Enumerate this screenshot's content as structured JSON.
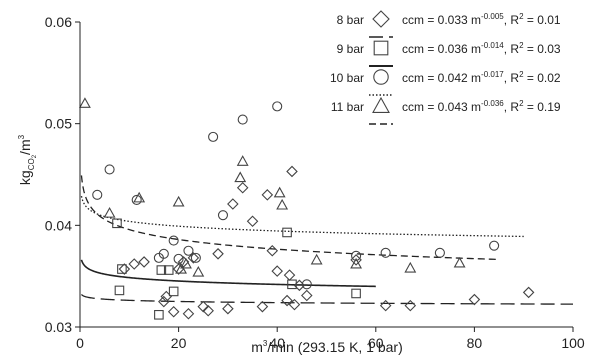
{
  "chart_data": {
    "type": "scatter",
    "title": "",
    "xlabel_main": "m",
    "xlabel_sup": "3",
    "xlabel_rest": "/min (293.15 K, 1 bar)",
    "ylabel_main": "kg",
    "ylabel_sub": "CO",
    "ylabel_subsub": "2",
    "ylabel_rest": "/m",
    "ylabel_sup": "3",
    "xlim": [
      0,
      100
    ],
    "ylim": [
      0.03,
      0.06
    ],
    "xticks": [
      {
        "v": 0,
        "label": "0"
      },
      {
        "v": 20,
        "label": "20"
      },
      {
        "v": 40,
        "label": "40"
      },
      {
        "v": 60,
        "label": "60"
      },
      {
        "v": 80,
        "label": "80"
      },
      {
        "v": 100,
        "label": "100"
      }
    ],
    "yticks": [
      {
        "v": 0.03,
        "label": "0.03"
      },
      {
        "v": 0.04,
        "label": "0.04"
      },
      {
        "v": 0.05,
        "label": "0.05"
      },
      {
        "v": 0.06,
        "label": "0.06"
      }
    ],
    "grid": false,
    "legend_position": "top-right",
    "series": [
      {
        "name": "8 bar",
        "marker": "diamond",
        "eq_main": "ccm = 0.033 m",
        "eq_sup": "-0.005",
        "eq_tail": ", R",
        "eq_sup2": "2",
        "eq_end": " = 0.01",
        "fit": {
          "a": 0.033,
          "b": -0.005,
          "xmax": 100,
          "dash": "long-short"
        },
        "points": [
          [
            9,
            0.0357
          ],
          [
            11,
            0.0362
          ],
          [
            13,
            0.0364
          ],
          [
            17,
            0.0325
          ],
          [
            17.5,
            0.033
          ],
          [
            19,
            0.0315
          ],
          [
            20,
            0.0357
          ],
          [
            21,
            0.0364
          ],
          [
            22,
            0.0313
          ],
          [
            23,
            0.0368
          ],
          [
            25,
            0.032
          ],
          [
            26,
            0.0316
          ],
          [
            28,
            0.0372
          ],
          [
            30,
            0.0318
          ],
          [
            31,
            0.0421
          ],
          [
            33,
            0.0437
          ],
          [
            35,
            0.0404
          ],
          [
            37,
            0.032
          ],
          [
            38,
            0.043
          ],
          [
            39,
            0.0375
          ],
          [
            40,
            0.0355
          ],
          [
            42,
            0.0326
          ],
          [
            42.5,
            0.0351
          ],
          [
            43,
            0.0453
          ],
          [
            43.5,
            0.0322
          ],
          [
            44.5,
            0.0341
          ],
          [
            46,
            0.0331
          ],
          [
            56,
            0.0366
          ],
          [
            62,
            0.0321
          ],
          [
            67,
            0.0321
          ],
          [
            80,
            0.0327
          ],
          [
            91,
            0.0334
          ]
        ]
      },
      {
        "name": "9 bar",
        "marker": "square",
        "eq_main": "ccm = 0.036 m",
        "eq_sup": "-0.014",
        "eq_tail": ", R",
        "eq_sup2": "2",
        "eq_end": " = 0.03",
        "fit": {
          "a": 0.036,
          "b": -0.014,
          "xmax": 60,
          "dash": "solid"
        },
        "points": [
          [
            7.5,
            0.0402
          ],
          [
            8,
            0.0336
          ],
          [
            8.5,
            0.0357
          ],
          [
            16,
            0.0312
          ],
          [
            16.5,
            0.0356
          ],
          [
            18,
            0.0356
          ],
          [
            19,
            0.0335
          ],
          [
            42,
            0.0393
          ],
          [
            43,
            0.0342
          ],
          [
            56,
            0.0333
          ]
        ]
      },
      {
        "name": "10 bar",
        "marker": "circle",
        "eq_main": "ccm = 0.042 m",
        "eq_sup": "-0.017",
        "eq_tail": ", R",
        "eq_sup2": "2",
        "eq_end": " = 0.02",
        "fit": {
          "a": 0.042,
          "b": -0.017,
          "xmax": 90,
          "dash": "dotted"
        },
        "points": [
          [
            3.5,
            0.043
          ],
          [
            6,
            0.0455
          ],
          [
            11.5,
            0.0425
          ],
          [
            16,
            0.0368
          ],
          [
            17,
            0.0372
          ],
          [
            19,
            0.0385
          ],
          [
            20,
            0.0367
          ],
          [
            22,
            0.0375
          ],
          [
            23.5,
            0.0368
          ],
          [
            27,
            0.0487
          ],
          [
            29,
            0.041
          ],
          [
            33,
            0.0504
          ],
          [
            40,
            0.0517
          ],
          [
            46,
            0.0342
          ],
          [
            56,
            0.037
          ],
          [
            62,
            0.0373
          ],
          [
            73,
            0.0373
          ],
          [
            84,
            0.038
          ]
        ]
      },
      {
        "name": "11 bar",
        "marker": "triangle",
        "eq_main": "ccm = 0.043 m",
        "eq_sup": "-0.036",
        "eq_tail": ", R",
        "eq_sup2": "2",
        "eq_end": " = 0.19",
        "fit": {
          "a": 0.043,
          "b": -0.036,
          "xmax": 85,
          "dash": "dashed"
        },
        "points": [
          [
            1,
            0.052
          ],
          [
            6,
            0.0412
          ],
          [
            12,
            0.0427
          ],
          [
            20,
            0.0423
          ],
          [
            20.5,
            0.0357
          ],
          [
            21.5,
            0.0362
          ],
          [
            24,
            0.0354
          ],
          [
            32.5,
            0.0447
          ],
          [
            33,
            0.0463
          ],
          [
            40.5,
            0.0432
          ],
          [
            41,
            0.042
          ],
          [
            48,
            0.0366
          ],
          [
            56,
            0.0362
          ],
          [
            67,
            0.0358
          ],
          [
            77,
            0.0363
          ]
        ]
      }
    ]
  }
}
